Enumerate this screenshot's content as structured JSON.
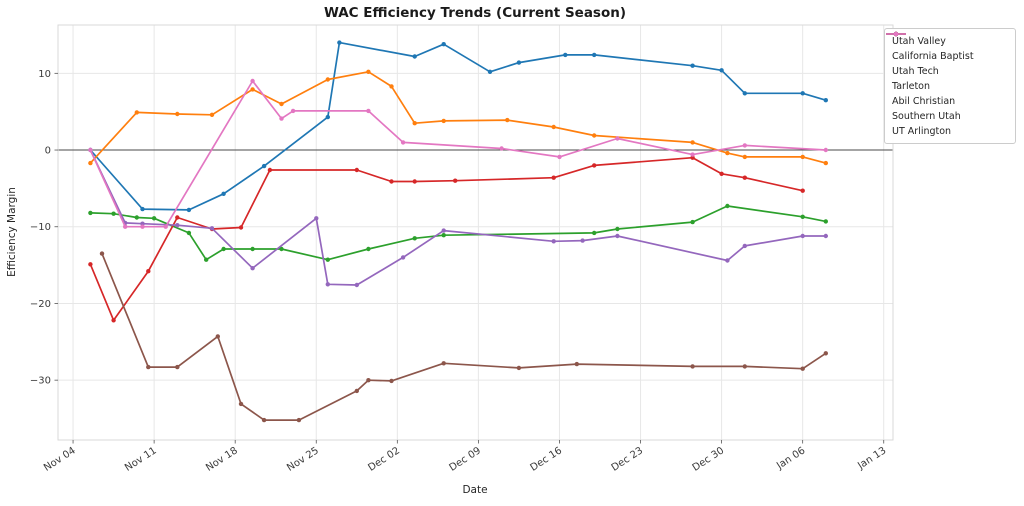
{
  "chart_data": {
    "type": "line",
    "title": "WAC Efficiency Trends (Current Season)",
    "xlabel": "Date",
    "ylabel": "Efficiency Margin",
    "x_unit_note": "x values are day offsets from Nov 04",
    "x_range": [
      -1.3,
      70.8
    ],
    "y_range": [
      -37.8,
      16.3
    ],
    "grid": true,
    "zero_line": true,
    "legend_position": "outside upper right",
    "x_ticks": [
      {
        "day": 0,
        "label": "Nov 04"
      },
      {
        "day": 7,
        "label": "Nov 11"
      },
      {
        "day": 14,
        "label": "Nov 18"
      },
      {
        "day": 21,
        "label": "Nov 25"
      },
      {
        "day": 28,
        "label": "Dec 02"
      },
      {
        "day": 35,
        "label": "Dec 09"
      },
      {
        "day": 42,
        "label": "Dec 16"
      },
      {
        "day": 49,
        "label": "Dec 23"
      },
      {
        "day": 56,
        "label": "Dec 30"
      },
      {
        "day": 63,
        "label": "Jan 06"
      },
      {
        "day": 70,
        "label": "Jan 13"
      }
    ],
    "y_ticks": [
      {
        "value": 10,
        "label": "10"
      },
      {
        "value": 0,
        "label": "0"
      },
      {
        "value": -10,
        "label": "−10"
      },
      {
        "value": -20,
        "label": "−20"
      },
      {
        "value": -30,
        "label": "−30"
      }
    ],
    "series": [
      {
        "name": "Utah Valley",
        "color": "#1f77b4",
        "points": [
          [
            1.5,
            0.0
          ],
          [
            6,
            -7.7
          ],
          [
            10,
            -7.8
          ],
          [
            13,
            -5.7
          ],
          [
            16.5,
            -2.1
          ],
          [
            22,
            4.3
          ],
          [
            23,
            14.0
          ],
          [
            29.5,
            12.2
          ],
          [
            32,
            13.8
          ],
          [
            36,
            10.2
          ],
          [
            38.5,
            11.4
          ],
          [
            42.5,
            12.4
          ],
          [
            45,
            12.4
          ],
          [
            53.5,
            11.0
          ],
          [
            56,
            10.4
          ],
          [
            58,
            7.4
          ],
          [
            63,
            7.4
          ],
          [
            65,
            6.5
          ]
        ]
      },
      {
        "name": "California Baptist",
        "color": "#ff7f0e",
        "points": [
          [
            1.5,
            -1.7
          ],
          [
            5.5,
            4.9
          ],
          [
            9,
            4.7
          ],
          [
            12,
            4.6
          ],
          [
            15.5,
            7.9
          ],
          [
            18,
            6.0
          ],
          [
            22,
            9.2
          ],
          [
            25.5,
            10.2
          ],
          [
            27.5,
            8.3
          ],
          [
            29.5,
            3.5
          ],
          [
            32,
            3.8
          ],
          [
            37.5,
            3.9
          ],
          [
            41.5,
            3.0
          ],
          [
            45,
            1.9
          ],
          [
            53.5,
            1.0
          ],
          [
            56.5,
            -0.4
          ],
          [
            58,
            -0.9
          ],
          [
            63,
            -0.9
          ],
          [
            65,
            -1.7
          ]
        ]
      },
      {
        "name": "Utah Tech",
        "color": "#2ca02c",
        "points": [
          [
            1.5,
            -8.2
          ],
          [
            3.5,
            -8.3
          ],
          [
            5.5,
            -8.8
          ],
          [
            7,
            -8.9
          ],
          [
            10,
            -10.8
          ],
          [
            11.5,
            -14.3
          ],
          [
            13,
            -12.9
          ],
          [
            15.5,
            -12.9
          ],
          [
            18,
            -12.9
          ],
          [
            22,
            -14.3
          ],
          [
            25.5,
            -12.9
          ],
          [
            29.5,
            -11.5
          ],
          [
            32,
            -11.1
          ],
          [
            45,
            -10.8
          ],
          [
            47,
            -10.3
          ],
          [
            53.5,
            -9.4
          ],
          [
            56.5,
            -7.3
          ],
          [
            63,
            -8.7
          ],
          [
            65,
            -9.3
          ]
        ]
      },
      {
        "name": "Tarleton",
        "color": "#d62728",
        "points": [
          [
            1.5,
            -14.9
          ],
          [
            3.5,
            -22.2
          ],
          [
            6.5,
            -15.8
          ],
          [
            9,
            -8.8
          ],
          [
            12,
            -10.3
          ],
          [
            14.5,
            -10.1
          ],
          [
            17,
            -2.6
          ],
          [
            24.5,
            -2.6
          ],
          [
            27.5,
            -4.1
          ],
          [
            29.5,
            -4.1
          ],
          [
            33,
            -4.0
          ],
          [
            41.5,
            -3.6
          ],
          [
            45,
            -2.0
          ],
          [
            53.5,
            -1.0
          ],
          [
            56,
            -3.1
          ],
          [
            58,
            -3.6
          ],
          [
            63,
            -5.3
          ]
        ]
      },
      {
        "name": "Abil Christian",
        "color": "#9467bd",
        "points": [
          [
            1.5,
            0.0
          ],
          [
            4.5,
            -9.5
          ],
          [
            6,
            -9.6
          ],
          [
            9,
            -9.8
          ],
          [
            12,
            -10.2
          ],
          [
            15.5,
            -15.4
          ],
          [
            21,
            -8.9
          ],
          [
            22,
            -17.5
          ],
          [
            24.5,
            -17.6
          ],
          [
            28.5,
            -14.0
          ],
          [
            32,
            -10.5
          ],
          [
            41.5,
            -11.9
          ],
          [
            44,
            -11.8
          ],
          [
            47,
            -11.2
          ],
          [
            56.5,
            -14.4
          ],
          [
            58,
            -12.5
          ],
          [
            63,
            -11.2
          ],
          [
            65,
            -11.2
          ]
        ]
      },
      {
        "name": "Southern Utah",
        "color": "#8c564b",
        "points": [
          [
            2.5,
            -13.5
          ],
          [
            6.5,
            -28.3
          ],
          [
            9,
            -28.3
          ],
          [
            12.5,
            -24.3
          ],
          [
            14.5,
            -33.1
          ],
          [
            16.5,
            -35.2
          ],
          [
            19.5,
            -35.2
          ],
          [
            24.5,
            -31.4
          ],
          [
            25.5,
            -30.0
          ],
          [
            27.5,
            -30.1
          ],
          [
            32,
            -27.8
          ],
          [
            38.5,
            -28.4
          ],
          [
            43.5,
            -27.9
          ],
          [
            53.5,
            -28.2
          ],
          [
            58,
            -28.2
          ],
          [
            63,
            -28.5
          ],
          [
            65,
            -26.5
          ]
        ]
      },
      {
        "name": "UT Arlington",
        "color": "#e377c2",
        "points": [
          [
            1.5,
            0.0
          ],
          [
            4.5,
            -10.0
          ],
          [
            6,
            -10.0
          ],
          [
            8,
            -10.0
          ],
          [
            15.5,
            9.0
          ],
          [
            18,
            4.1
          ],
          [
            19,
            5.1
          ],
          [
            25.5,
            5.1
          ],
          [
            28.5,
            1.0
          ],
          [
            37,
            0.2
          ],
          [
            42,
            -0.9
          ],
          [
            47,
            1.5
          ],
          [
            53.5,
            -0.6
          ],
          [
            58,
            0.6
          ],
          [
            65,
            0.0
          ]
        ]
      }
    ]
  }
}
